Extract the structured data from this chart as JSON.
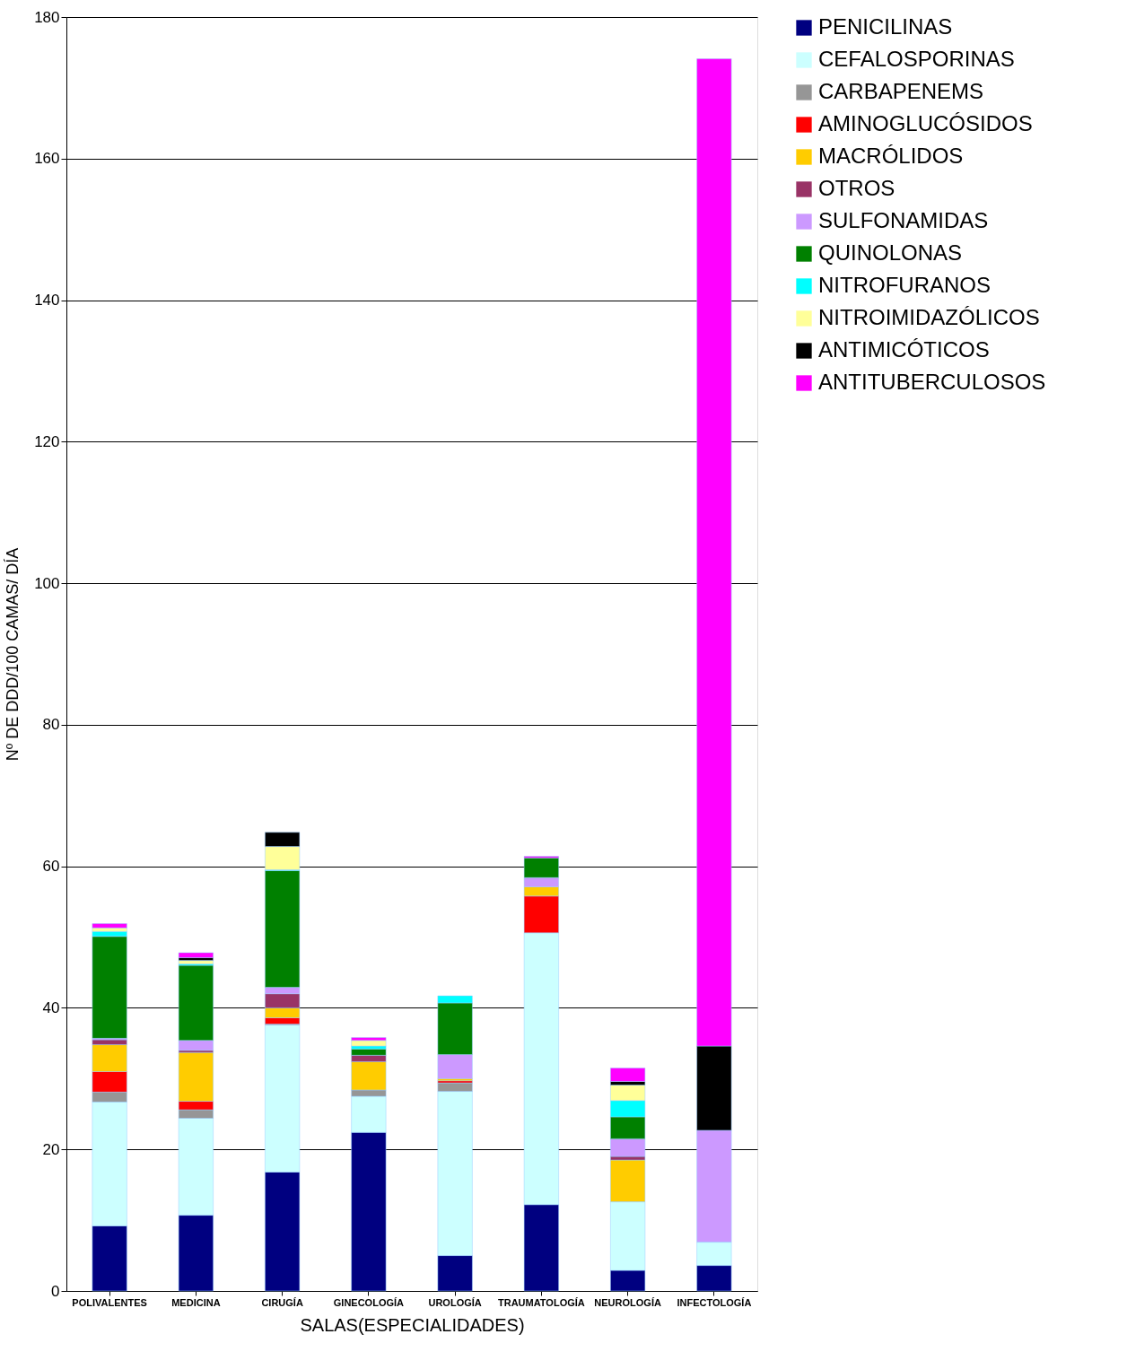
{
  "chart_data": {
    "type": "bar",
    "stacked": true,
    "xlabel": "SALAS(ESPECIALIDADES)",
    "ylabel": "Nº DE DDD/100 CAMAS/ DÍA",
    "categories": [
      "POLIVALENTES",
      "MEDICINA",
      "CIRUGÍA",
      "GINECOLOGÍA",
      "UROLOGÍA",
      "TRAUMATOLOGÍA",
      "NEUROLOGÍA",
      "INFECTOLOGÍA"
    ],
    "ylim": [
      0,
      180
    ],
    "yticks": [
      0,
      20,
      40,
      60,
      80,
      100,
      120,
      140,
      160,
      180
    ],
    "grid": "y",
    "legend": "top right",
    "series": [
      {
        "name": "PENICILINAS",
        "color": "#000080",
        "values": [
          9.2,
          10.7,
          16.8,
          22.4,
          5.0,
          12.2,
          2.9,
          3.6
        ]
      },
      {
        "name": "CEFALOSPORINAS",
        "color": "#ccffff",
        "values": [
          17.5,
          13.7,
          20.8,
          5.1,
          23.2,
          38.4,
          9.7,
          3.3
        ]
      },
      {
        "name": "CARBAPENEMS",
        "color": "#969696",
        "values": [
          1.4,
          1.2,
          0.1,
          0.9,
          1.2,
          null,
          null,
          null
        ]
      },
      {
        "name": "AMINOGLUCÓSIDOS",
        "color": "#ff0000",
        "values": [
          2.9,
          1.2,
          0.9,
          null,
          0.3,
          5.2,
          null,
          null
        ]
      },
      {
        "name": "MACRÓLIDOS",
        "color": "#ffcc00",
        "values": [
          3.8,
          6.9,
          1.4,
          4.0,
          0.3,
          1.3,
          5.9,
          null
        ]
      },
      {
        "name": "OTROS",
        "color": "#993366",
        "values": [
          0.7,
          0.3,
          2.0,
          0.9,
          null,
          null,
          0.5,
          null
        ]
      },
      {
        "name": "SULFONAMIDAS",
        "color": "#cc99ff",
        "values": [
          0.2,
          1.4,
          0.9,
          null,
          3.4,
          1.3,
          2.5,
          15.8
        ]
      },
      {
        "name": "QUINOLONAS",
        "color": "#008000",
        "values": [
          14.4,
          10.6,
          16.5,
          0.9,
          7.3,
          2.8,
          3.1,
          null
        ]
      },
      {
        "name": "NITROFURANOS",
        "color": "#00ffff",
        "values": [
          0.7,
          0.2,
          0.1,
          0.4,
          1.0,
          null,
          2.3,
          null
        ]
      },
      {
        "name": "NITROIMIDAZÓLICOS",
        "color": "#ffff99",
        "values": [
          0.5,
          0.5,
          3.3,
          0.8,
          null,
          null,
          2.2,
          null
        ]
      },
      {
        "name": "ANTIMICÓTICOS",
        "color": "#000000",
        "values": [
          null,
          0.4,
          2.0,
          null,
          null,
          null,
          0.5,
          11.9
        ]
      },
      {
        "name": "ANTITUBERCULOSOS",
        "color": "#ff00ff",
        "values": [
          0.6,
          0.7,
          null,
          0.4,
          null,
          0.2,
          1.9,
          139.5
        ]
      }
    ]
  }
}
